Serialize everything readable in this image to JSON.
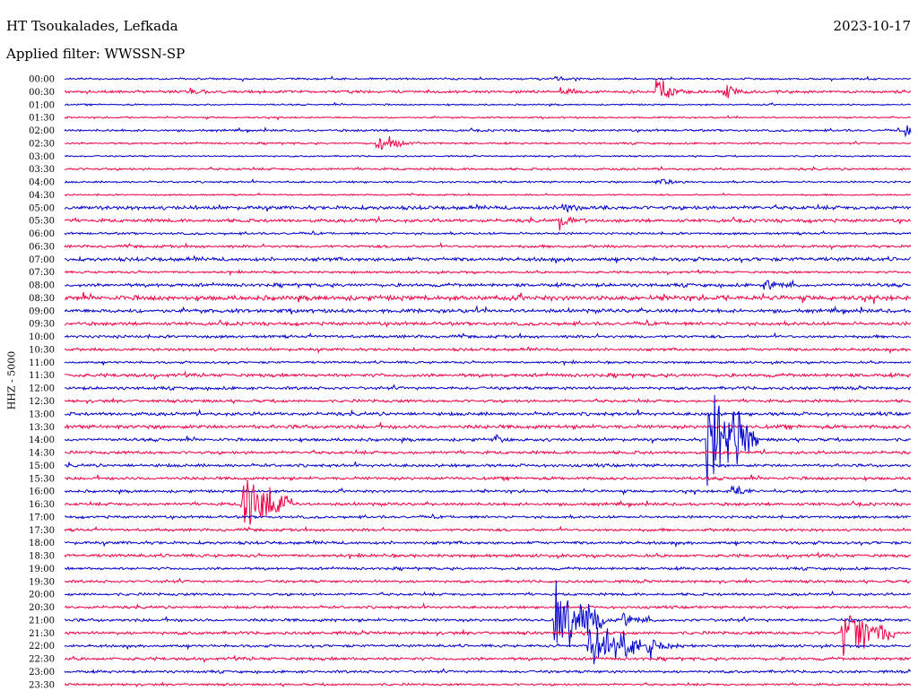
{
  "header": {
    "station": "HT Tsoukalades, Lefkada",
    "date": "2023-10-17",
    "filter": "Applied filter: WWSSN-SP"
  },
  "chart_data": {
    "type": "line",
    "title": "HT Tsoukalades, Lefkada",
    "ylabel": "HHZ - 5000",
    "colors": [
      "#0000cc",
      "#ee0044"
    ],
    "row_labels": [
      "00:00",
      "00:30",
      "01:00",
      "01:30",
      "02:00",
      "02:30",
      "03:00",
      "03:30",
      "04:00",
      "04:30",
      "05:00",
      "05:30",
      "06:00",
      "06:30",
      "07:00",
      "07:30",
      "08:00",
      "08:30",
      "09:00",
      "09:30",
      "10:00",
      "10:30",
      "11:00",
      "11:30",
      "12:00",
      "12:30",
      "13:00",
      "13:30",
      "14:00",
      "14:30",
      "15:00",
      "15:30",
      "16:00",
      "16:30",
      "17:00",
      "17:30",
      "18:00",
      "18:30",
      "19:00",
      "19:30",
      "20:00",
      "20:30",
      "21:00",
      "21:30",
      "22:00",
      "22:30",
      "23:00",
      "23:30"
    ],
    "noise_levels": [
      1,
      1.5,
      0.8,
      0.8,
      1.2,
      1,
      0.8,
      1.2,
      1,
      0.8,
      2,
      1.8,
      1.2,
      1.4,
      2,
      1.2,
      1.8,
      2.5,
      2,
      1.8,
      1.5,
      1.5,
      1.2,
      1.8,
      1.6,
      1.5,
      1.8,
      2,
      1.6,
      1.6,
      1.6,
      1.6,
      1.4,
      1.6,
      1.4,
      1.4,
      1.6,
      1.6,
      1.4,
      1.4,
      1.4,
      1.4,
      1.6,
      1.6,
      1.4,
      1.6,
      1.4,
      1.2
    ],
    "events": [
      {
        "row": 0,
        "pos": 0.58,
        "amp": 3
      },
      {
        "row": 1,
        "pos": 0.15,
        "amp": 4
      },
      {
        "row": 1,
        "pos": 0.585,
        "amp": 8
      },
      {
        "row": 1,
        "pos": 0.78,
        "amp": 10
      },
      {
        "row": 1,
        "pos": 0.7,
        "amp": 30
      },
      {
        "row": 4,
        "pos": 0.995,
        "amp": 8
      },
      {
        "row": 5,
        "pos": 0.37,
        "amp": 10
      },
      {
        "row": 5,
        "pos": 0.385,
        "amp": 7
      },
      {
        "row": 8,
        "pos": 0.7,
        "amp": 12
      },
      {
        "row": 10,
        "pos": 0.59,
        "amp": 6
      },
      {
        "row": 11,
        "pos": 0.585,
        "amp": 12
      },
      {
        "row": 16,
        "pos": 0.825,
        "amp": 12
      },
      {
        "row": 28,
        "pos": 0.51,
        "amp": 5
      },
      {
        "row": 28,
        "pos": 0.76,
        "amp": 80
      },
      {
        "row": 32,
        "pos": 0.79,
        "amp": 8
      },
      {
        "row": 33,
        "pos": 0.21,
        "amp": 40
      },
      {
        "row": 42,
        "pos": 0.66,
        "amp": 12
      },
      {
        "row": 43,
        "pos": 0.92,
        "amp": 40
      },
      {
        "row": 44,
        "pos": 0.69,
        "amp": 20
      },
      {
        "row": 44,
        "pos": 0.62,
        "amp": 40
      },
      {
        "row": 42,
        "pos": 0.58,
        "amp": 50
      }
    ]
  }
}
